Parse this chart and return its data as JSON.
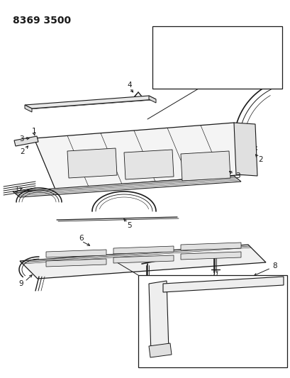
{
  "title": "8369 3500",
  "bg": "#ffffff",
  "lc": "#1a1a1a",
  "fig_w": 4.1,
  "fig_h": 5.33,
  "dpi": 100,
  "title_fontsize": 10,
  "label_fontsize": 7.5
}
